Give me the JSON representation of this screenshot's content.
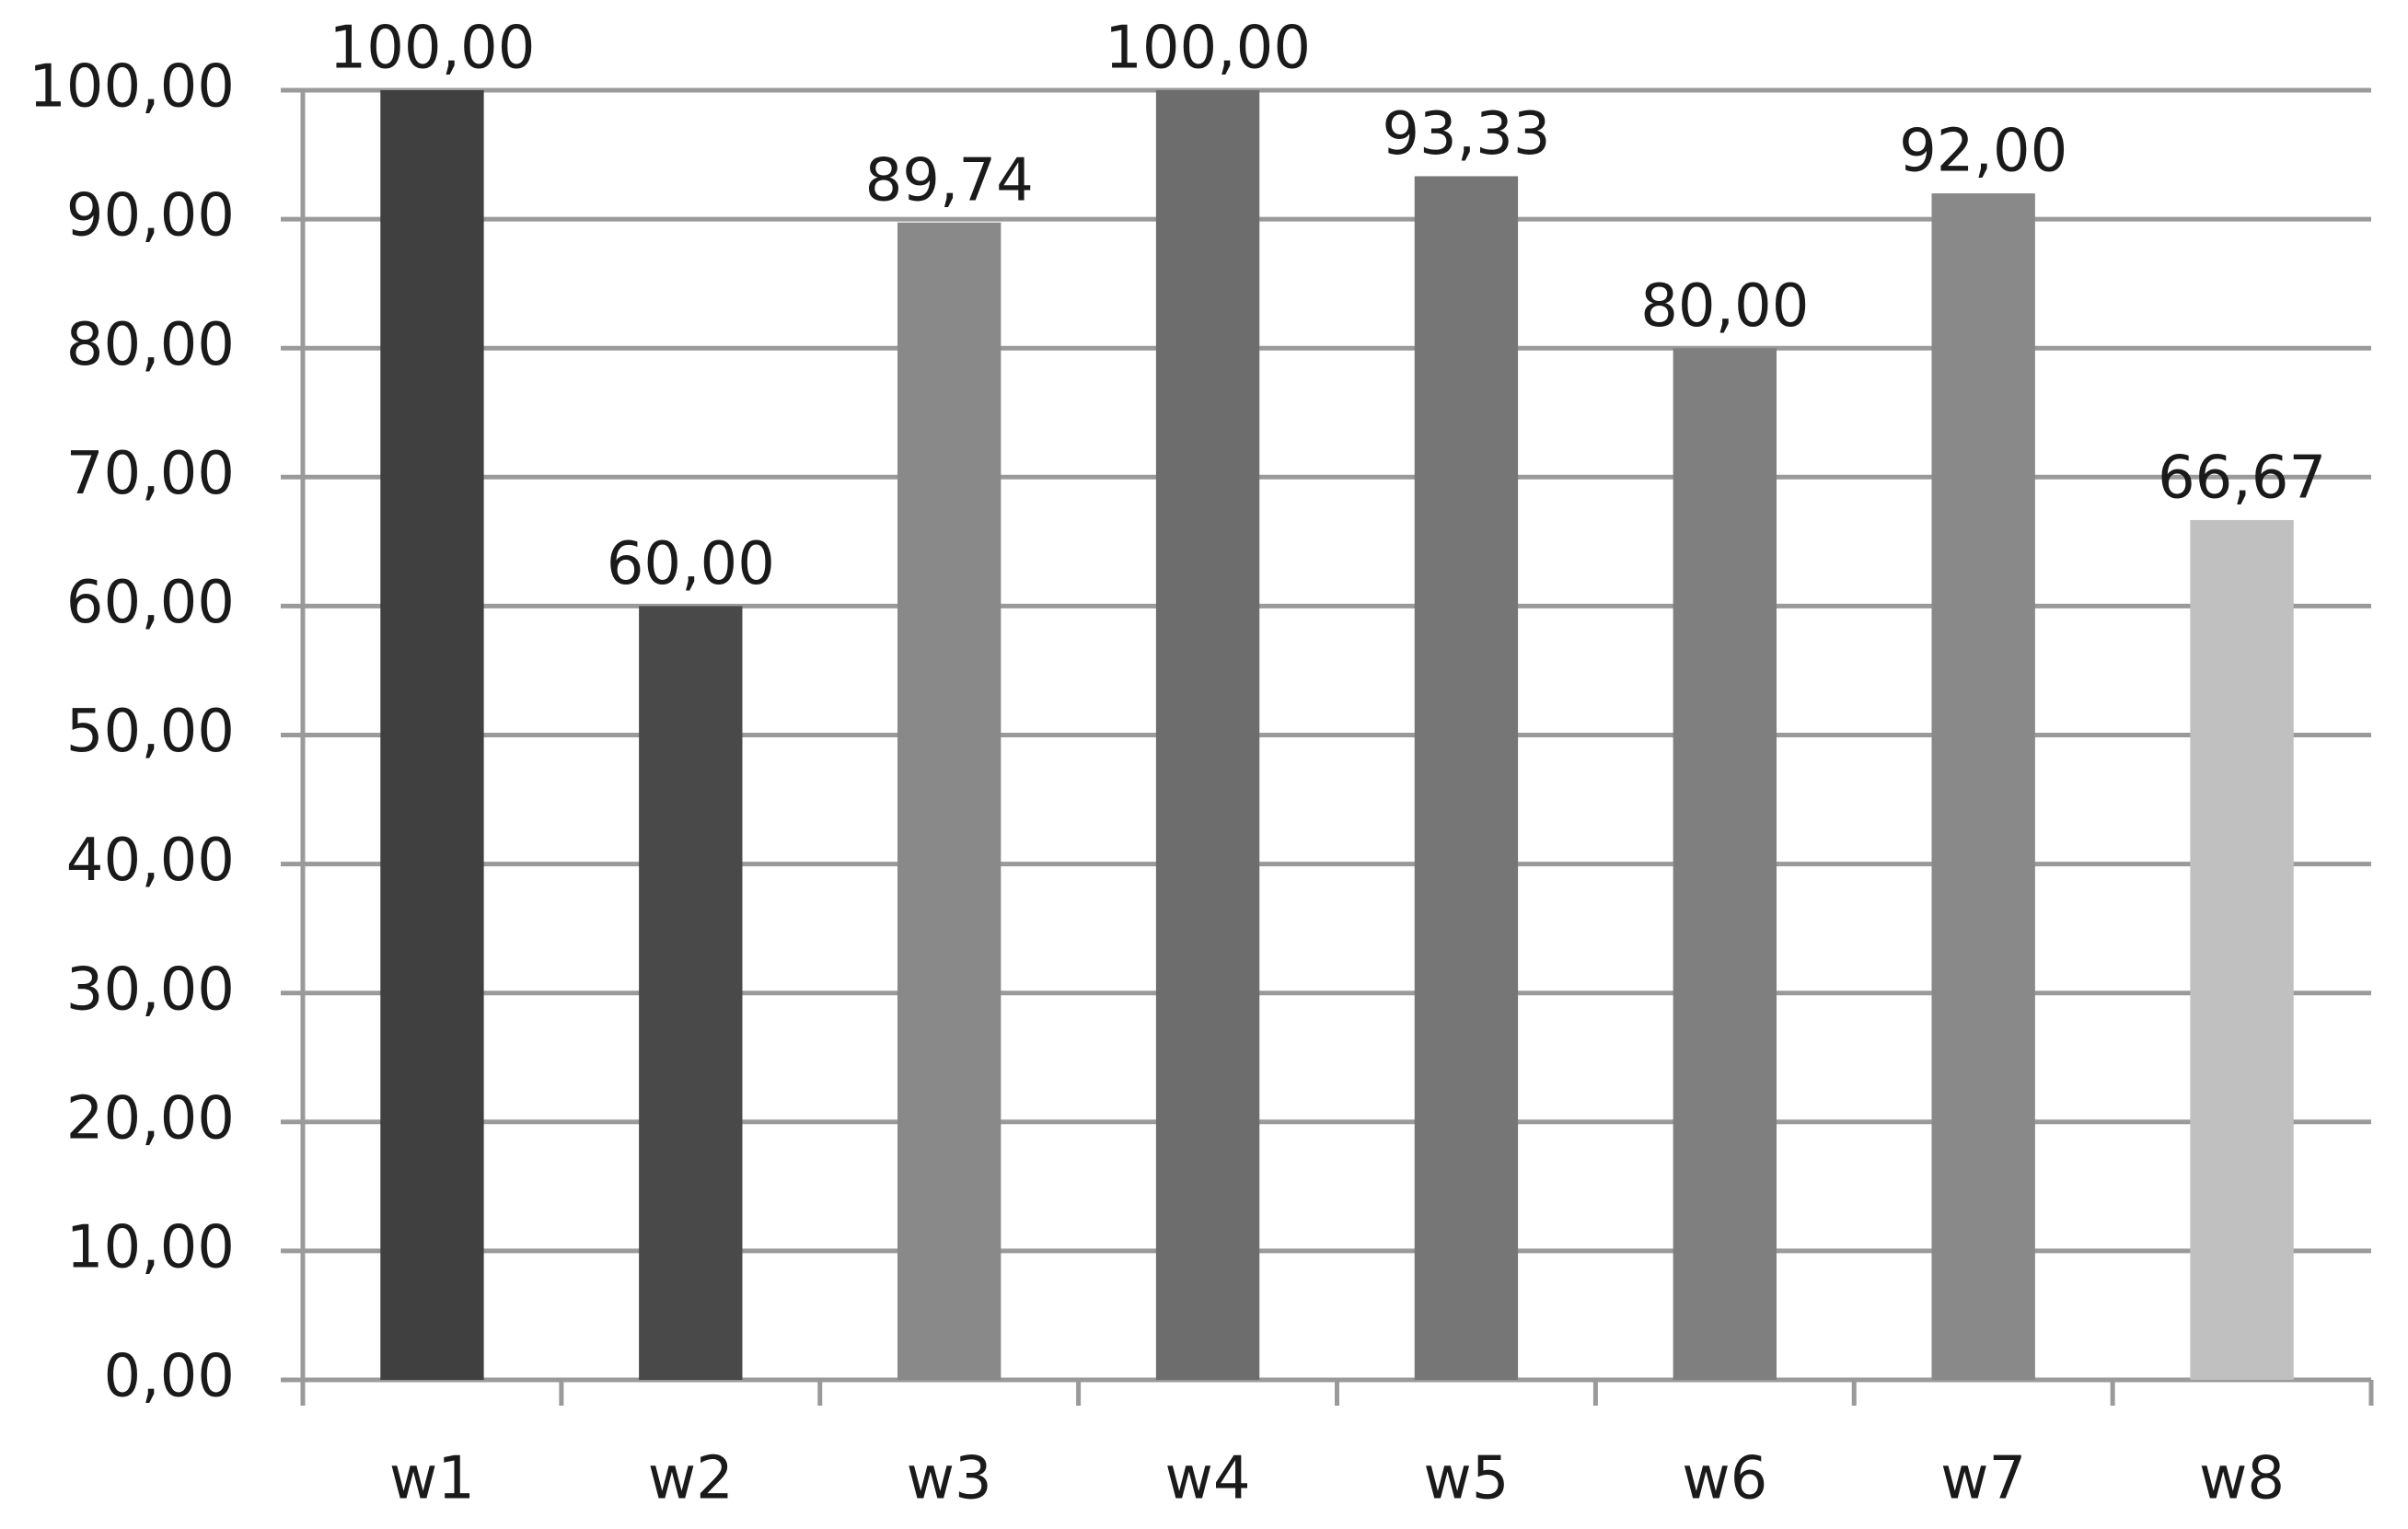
{
  "chart_data": {
    "type": "bar",
    "categories": [
      "w1",
      "w2",
      "w3",
      "w4",
      "w5",
      "w6",
      "w7",
      "w8"
    ],
    "values": [
      100,
      60,
      89.74,
      100,
      93.33,
      80,
      92,
      66.67
    ],
    "value_labels": [
      "100,00",
      "60,00",
      "89,74",
      "100,00",
      "93,33",
      "80,00",
      "92,00",
      "66,67"
    ],
    "colors": [
      "#404040",
      "#494949",
      "#898989",
      "#6d6d6d",
      "#767676",
      "#7f7f7f",
      "#898989",
      "#c0c0c0"
    ],
    "ylim": [
      0,
      100
    ],
    "yticks": [
      {
        "value": 0,
        "label": "0,00"
      },
      {
        "value": 10,
        "label": "10,00"
      },
      {
        "value": 20,
        "label": "20,00"
      },
      {
        "value": 30,
        "label": "30,00"
      },
      {
        "value": 40,
        "label": "40,00"
      },
      {
        "value": 50,
        "label": "50,00"
      },
      {
        "value": 60,
        "label": "60,00"
      },
      {
        "value": 70,
        "label": "70,00"
      },
      {
        "value": 80,
        "label": "80,00"
      },
      {
        "value": 90,
        "label": "90,00"
      },
      {
        "value": 100,
        "label": "100,00"
      }
    ],
    "grid": true
  }
}
